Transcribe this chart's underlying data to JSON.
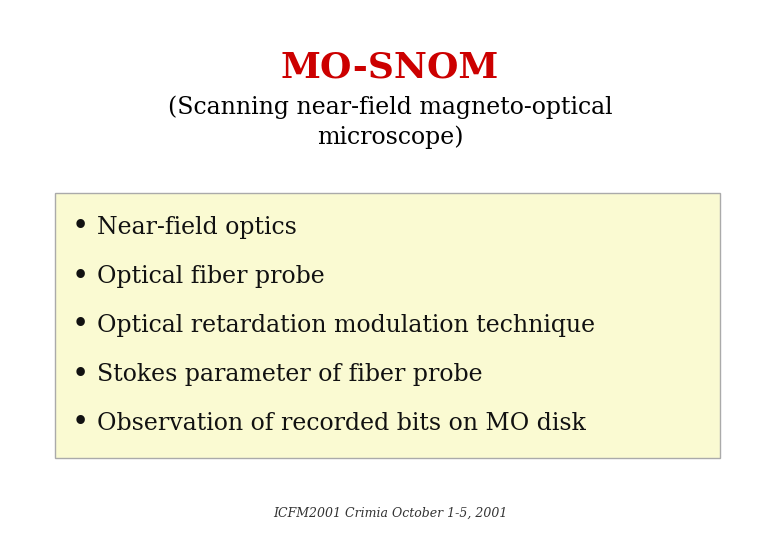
{
  "title": "MO-SNOM",
  "title_color": "#cc0000",
  "title_fontsize": 26,
  "subtitle": "(Scanning near-field magneto-optical\nmicroscope)",
  "subtitle_fontsize": 17,
  "subtitle_color": "#000000",
  "bullet_items": [
    "Near-field optics",
    "Optical fiber probe",
    "Optical retardation modulation technique",
    "Stokes parameter of fiber probe",
    "Observation of recorded bits on MO disk"
  ],
  "bullet_fontsize": 17,
  "bullet_color": "#111111",
  "box_bg_color": "#fafad2",
  "box_edge_color": "#aaaaaa",
  "footer": "ICFM2001 Crimia October 1-5, 2001",
  "footer_fontsize": 9,
  "footer_color": "#333333",
  "bg_color": "#ffffff"
}
